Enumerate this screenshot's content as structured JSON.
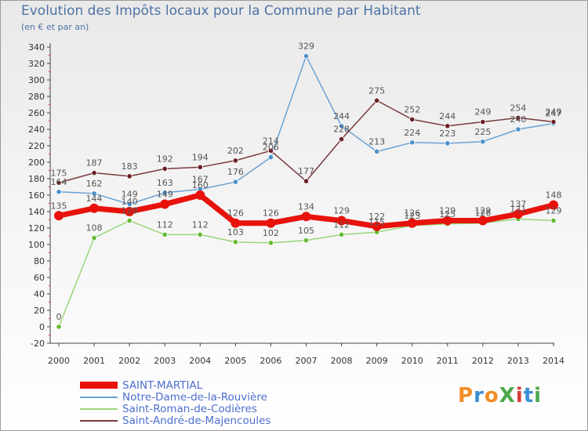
{
  "header": {
    "title": "Evolution des Impôts locaux pour la Commune par Habitant",
    "subtitle": "(en € et par an)"
  },
  "logo": {
    "text": "ProXiti",
    "colors": [
      "#f28c28",
      "#3a8fd6",
      "#f28c28",
      "#4aa84a",
      "#d93a3a",
      "#3a8fd6",
      "#4aa84a"
    ]
  },
  "chart_data": {
    "type": "line",
    "x": [
      "2000",
      "2001",
      "2002",
      "2003",
      "2004",
      "2005",
      "2006",
      "2007",
      "2008",
      "2009",
      "2010",
      "2011",
      "2012",
      "2013",
      "2014"
    ],
    "ylim": [
      -20,
      340
    ],
    "yticks": [
      -20,
      0,
      20,
      40,
      60,
      80,
      100,
      120,
      140,
      160,
      180,
      200,
      220,
      240,
      260,
      280,
      300,
      320,
      340
    ],
    "grid": false,
    "legend_position": "bottom-left",
    "series": [
      {
        "name": "SAINT-MARTIAL",
        "color": "#e8120c",
        "line_color": "#e8120c",
        "width": 7,
        "label_color": "#555555",
        "values": [
          135,
          144,
          140,
          149,
          160,
          126,
          126,
          134,
          129,
          122,
          126,
          129,
          129,
          137,
          148
        ]
      },
      {
        "name": "Notre-Dame-de-la-Rouvière",
        "color": "#4a90cc",
        "line_color": "#6aa2d4",
        "width": 1.5,
        "label_color": "#555555",
        "values": [
          164,
          162,
          149,
          163,
          167,
          176,
          206,
          329,
          244,
          213,
          224,
          223,
          225,
          240,
          247
        ]
      },
      {
        "name": "Saint-Roman-de-Codières",
        "color": "#66bb33",
        "line_color": "#99d67a",
        "width": 1.5,
        "label_color": "#555555",
        "values": [
          0,
          108,
          129,
          112,
          112,
          103,
          102,
          105,
          112,
          115,
          123,
          125,
          126,
          131,
          129
        ]
      },
      {
        "name": "Saint-André-de-Majencoules",
        "color": "#6b1f24",
        "line_color": "#7a3a3e",
        "width": 1.5,
        "label_color": "#555555",
        "values": [
          175,
          187,
          183,
          192,
          194,
          202,
          214,
          177,
          228,
          275,
          252,
          244,
          249,
          254,
          249
        ]
      }
    ]
  }
}
